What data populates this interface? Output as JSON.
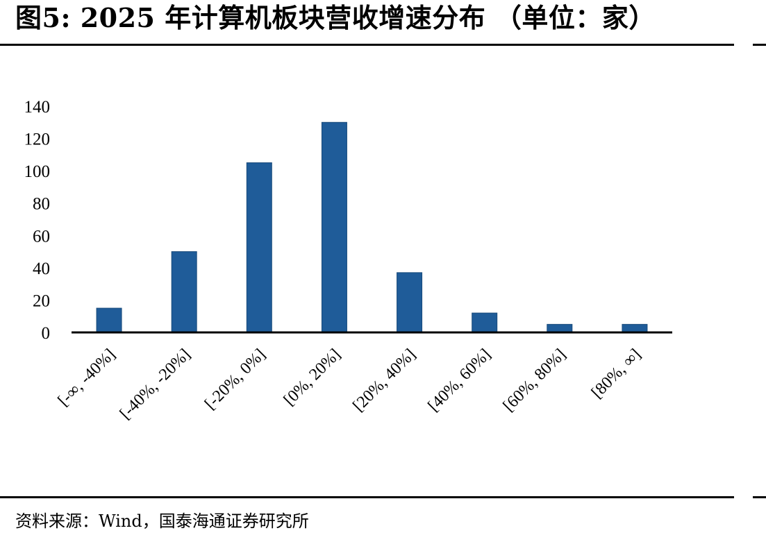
{
  "title": "图5:  2025 年计算机板块营收增速分布 （单位：家）",
  "source": "资料来源：Wind，国泰海通证券研究所",
  "colors": {
    "bar": "#1f5c99",
    "axis": "#000000"
  },
  "chart_data": {
    "type": "bar",
    "categories": [
      "[-∞,  -40%]",
      "[-40%,  -20%]",
      "[-20%,  0%]",
      "[0%,  20%]",
      "[20%,  40%]",
      "[40%,  60%]",
      "[60%,  80%]",
      "[80%,  ∞]"
    ],
    "values": [
      15,
      50,
      105,
      130,
      37,
      12,
      5,
      5
    ],
    "ylim": [
      0,
      140
    ],
    "yticks": [
      0,
      20,
      40,
      60,
      80,
      100,
      120,
      140
    ],
    "grid": false,
    "legend": "none"
  }
}
